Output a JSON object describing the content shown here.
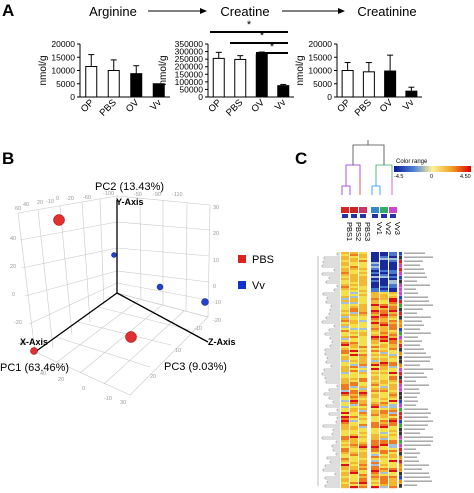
{
  "panels": {
    "a": "A",
    "b": "B",
    "c": "C"
  },
  "pathway": {
    "arginine": "Arginine",
    "creatine": "Creatine",
    "creatinine": "Creatinine"
  },
  "bar_ylabel": "nmol/g",
  "significance_mark": "*",
  "chart_data": [
    {
      "type": "bar",
      "title": "Arginine",
      "categories": [
        "OP",
        "PBS",
        "OV",
        "Vv"
      ],
      "values": [
        11500,
        10000,
        8800,
        5000
      ],
      "errors": [
        4500,
        4000,
        3000,
        0
      ],
      "fills": [
        "#ffffff",
        "#ffffff",
        "#000000",
        "#000000"
      ],
      "ylim": [
        0,
        20000
      ],
      "yticks": [
        "0",
        "5000",
        "10000",
        "15000",
        "20000"
      ]
    },
    {
      "type": "bar",
      "title": "Creatine",
      "categories": [
        "OP",
        "PBS",
        "OV",
        "Vv"
      ],
      "values": [
        255000,
        248000,
        282000,
        75000
      ],
      "errors": [
        40000,
        25000,
        15000,
        8000
      ],
      "fills": [
        "#ffffff",
        "#ffffff",
        "#000000",
        "#000000"
      ],
      "ylim": [
        0,
        350000
      ],
      "yticks": [
        "0",
        "50000",
        "100000",
        "150000",
        "200000",
        "250000",
        "300000",
        "350000"
      ]
    },
    {
      "type": "bar",
      "title": "Creatinine",
      "categories": [
        "OP",
        "PBS",
        "OV",
        "Vv"
      ],
      "values": [
        10000,
        9500,
        9800,
        2200
      ],
      "errors": [
        3000,
        3500,
        6000,
        1500
      ],
      "fills": [
        "#ffffff",
        "#ffffff",
        "#000000",
        "#000000"
      ],
      "ylim": [
        0,
        20000
      ],
      "yticks": [
        "0",
        "5000",
        "10000",
        "15000",
        "20000"
      ]
    }
  ],
  "pca": {
    "pc1": "PC1 (63.46%)",
    "pc2": "PC2 (13.43%)",
    "pc3": "PC3 (9.03%)",
    "x_axis": "X-Axis",
    "y_axis": "Y-Axis",
    "z_axis": "Z-Axis",
    "legend": [
      {
        "label": "PBS",
        "color": "#dd2222"
      },
      {
        "label": "Vv",
        "color": "#1133cc"
      }
    ]
  },
  "heatmap": {
    "color_range_label": "Color range",
    "min_label": "-4.5",
    "mid_label": "0",
    "max_label": "4.50",
    "samples": [
      "PBS1",
      "PBS2",
      "PBS3",
      "Vv1",
      "Vv2",
      "Vv3"
    ],
    "group_colors": [
      "#dd2222",
      "#cc2222",
      "#cc3366",
      "#3388cc",
      "#33aa66",
      "#cc44cc"
    ]
  }
}
